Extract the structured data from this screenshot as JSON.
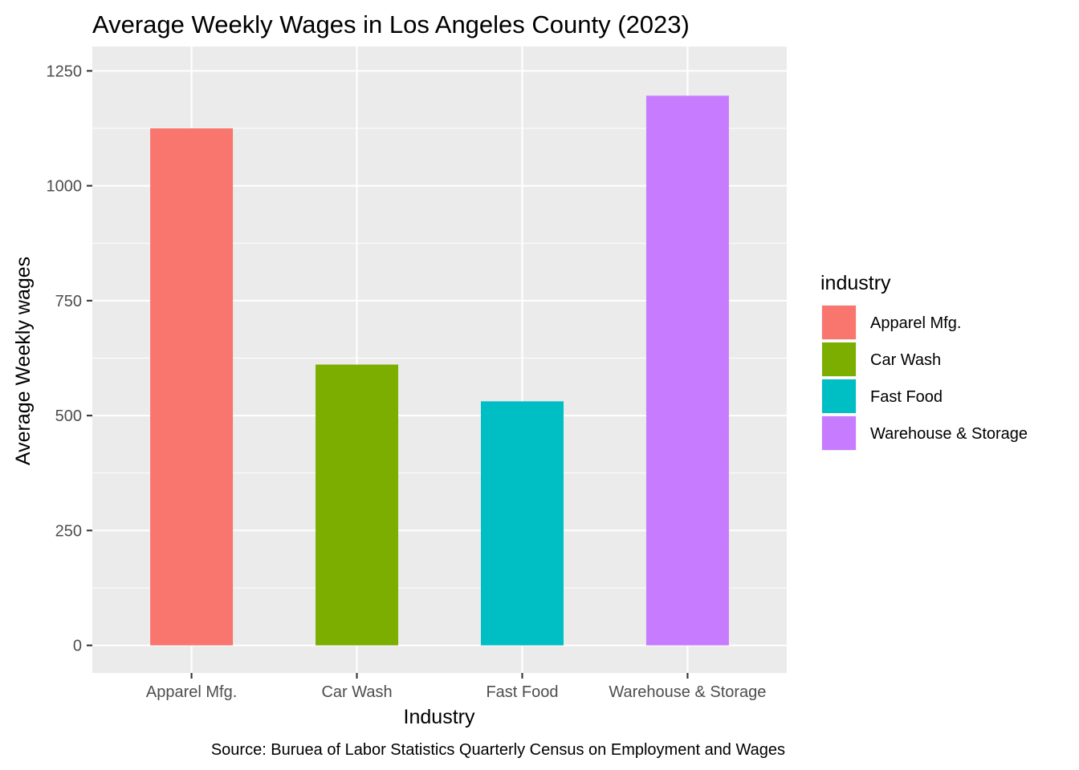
{
  "chart_data": {
    "type": "bar",
    "title": "Average Weekly Wages in Los Angeles County (2023)",
    "xlabel": "Industry",
    "ylabel": "Average Weekly wages",
    "caption": "Source: Buruea of Labor Statistics Quarterly Census on Employment and Wages",
    "categories": [
      "Apparel Mfg.",
      "Car Wash",
      "Fast Food",
      "Warehouse & Storage"
    ],
    "values": [
      1125,
      611,
      531,
      1196
    ],
    "colors": [
      "#F8766D",
      "#7CAE00",
      "#00BFC4",
      "#C77CFF"
    ],
    "ylim": [
      -60,
      1250
    ],
    "yticks": [
      0,
      250,
      500,
      750,
      1000,
      1250
    ],
    "ytick_labels": [
      "0",
      "250",
      "500",
      "750",
      "1000",
      "1250"
    ],
    "grid": true,
    "legend": {
      "title": "industry",
      "placement": "right",
      "entries": [
        "Apparel Mfg.",
        "Car Wash",
        "Fast Food",
        "Warehouse & Storage"
      ]
    }
  }
}
